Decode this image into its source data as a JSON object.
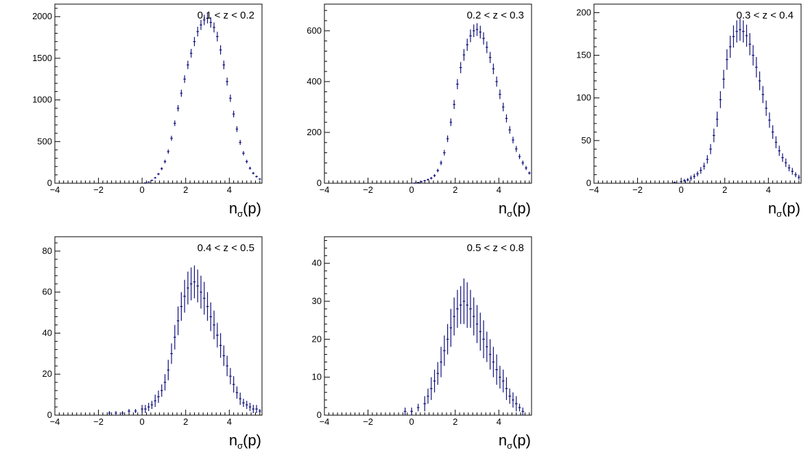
{
  "chart_data": [
    {
      "type": "scatter",
      "title": "0.1 < z < 0.2",
      "xlabel": "nσ(p)",
      "xlim": [
        -4,
        5.5
      ],
      "xticks": [
        -4,
        -2,
        0,
        2,
        4
      ],
      "ylim": [
        0,
        2150
      ],
      "yticks": [
        0,
        500,
        1000,
        1500,
        2000
      ],
      "series": [
        {
          "x": [
            0.15,
            0.3,
            0.45,
            0.6,
            0.75,
            0.9,
            1.05,
            1.2,
            1.35,
            1.5,
            1.65,
            1.8,
            1.95,
            2.1,
            2.25,
            2.4,
            2.55,
            2.7,
            2.85,
            3.0,
            3.15,
            3.3,
            3.45,
            3.6,
            3.75,
            3.9,
            4.05,
            4.2,
            4.35,
            4.5,
            4.65,
            4.8,
            4.95,
            5.1,
            5.25,
            5.4
          ],
          "y": [
            5,
            15,
            35,
            65,
            110,
            175,
            260,
            380,
            540,
            720,
            900,
            1080,
            1250,
            1420,
            1560,
            1700,
            1820,
            1900,
            1960,
            1980,
            1930,
            1870,
            1760,
            1600,
            1420,
            1220,
            1020,
            830,
            650,
            490,
            360,
            260,
            180,
            120,
            80,
            50
          ],
          "err": [
            3,
            5,
            8,
            10,
            14,
            18,
            22,
            26,
            30,
            34,
            38,
            42,
            46,
            50,
            52,
            55,
            58,
            60,
            62,
            62,
            62,
            60,
            58,
            56,
            52,
            48,
            44,
            40,
            35,
            30,
            26,
            22,
            18,
            14,
            12,
            9
          ]
        }
      ]
    },
    {
      "type": "scatter",
      "title": "0.2 < z < 0.3",
      "xlabel": "nσ(p)",
      "xlim": [
        -4,
        5.5
      ],
      "xticks": [
        -4,
        -2,
        0,
        2,
        4
      ],
      "ylim": [
        0,
        705
      ],
      "yticks": [
        0,
        200,
        400,
        600
      ],
      "series": [
        {
          "x": [
            0.15,
            0.3,
            0.45,
            0.6,
            0.75,
            0.9,
            1.05,
            1.2,
            1.35,
            1.5,
            1.65,
            1.8,
            1.95,
            2.1,
            2.25,
            2.4,
            2.55,
            2.7,
            2.85,
            3.0,
            3.15,
            3.3,
            3.45,
            3.6,
            3.75,
            3.9,
            4.05,
            4.2,
            4.35,
            4.5,
            4.65,
            4.8,
            4.95,
            5.1,
            5.25,
            5.4
          ],
          "y": [
            1,
            3,
            6,
            10,
            14,
            20,
            30,
            50,
            80,
            120,
            175,
            240,
            310,
            390,
            455,
            505,
            545,
            580,
            600,
            605,
            595,
            570,
            535,
            495,
            450,
            400,
            350,
            300,
            255,
            210,
            170,
            135,
            105,
            80,
            60,
            40
          ],
          "err": [
            1,
            2,
            3,
            3,
            4,
            5,
            6,
            7,
            9,
            11,
            13,
            15,
            18,
            20,
            22,
            23,
            24,
            25,
            25,
            25,
            25,
            24,
            23,
            22,
            21,
            20,
            19,
            17,
            16,
            15,
            13,
            12,
            10,
            9,
            8,
            6
          ]
        }
      ]
    },
    {
      "type": "scatter",
      "title": "0.3 < z < 0.4",
      "xlabel": "nσ(p)",
      "xlim": [
        -4,
        5.5
      ],
      "xticks": [
        -4,
        -2,
        0,
        2,
        4
      ],
      "ylim": [
        0,
        210
      ],
      "yticks": [
        0,
        50,
        100,
        150,
        200
      ],
      "series": [
        {
          "x": [
            -0.3,
            0.0,
            0.15,
            0.3,
            0.45,
            0.6,
            0.75,
            0.9,
            1.05,
            1.2,
            1.35,
            1.5,
            1.65,
            1.8,
            1.95,
            2.1,
            2.25,
            2.4,
            2.55,
            2.7,
            2.85,
            3.0,
            3.15,
            3.3,
            3.45,
            3.6,
            3.75,
            3.9,
            4.05,
            4.2,
            4.35,
            4.5,
            4.65,
            4.8,
            4.95,
            5.1,
            5.25,
            5.4
          ],
          "y": [
            1,
            2,
            3,
            4,
            6,
            8,
            11,
            15,
            20,
            28,
            40,
            56,
            75,
            98,
            122,
            145,
            160,
            172,
            178,
            180,
            178,
            173,
            163,
            150,
            136,
            120,
            104,
            88,
            74,
            60,
            48,
            38,
            30,
            24,
            18,
            14,
            10,
            7
          ],
          "err": [
            1,
            1,
            2,
            2,
            3,
            3,
            3,
            4,
            4,
            5,
            6,
            8,
            9,
            10,
            11,
            12,
            13,
            13,
            13,
            13,
            13,
            13,
            13,
            12,
            12,
            11,
            10,
            9,
            9,
            8,
            7,
            6,
            5,
            5,
            4,
            4,
            3,
            3
          ]
        }
      ]
    },
    {
      "type": "scatter",
      "title": "0.4 < z < 0.5",
      "xlabel": "nσ(p)",
      "xlim": [
        -4,
        5.5
      ],
      "xticks": [
        -4,
        -2,
        0,
        2,
        4
      ],
      "ylim": [
        0,
        87
      ],
      "yticks": [
        0,
        20,
        40,
        60,
        80
      ],
      "series": [
        {
          "x": [
            -1.5,
            -1.2,
            -0.9,
            -0.6,
            -0.3,
            0.0,
            0.15,
            0.3,
            0.45,
            0.6,
            0.75,
            0.9,
            1.05,
            1.2,
            1.35,
            1.5,
            1.65,
            1.8,
            1.95,
            2.1,
            2.25,
            2.4,
            2.55,
            2.7,
            2.85,
            3.0,
            3.15,
            3.3,
            3.45,
            3.6,
            3.75,
            3.9,
            4.05,
            4.2,
            4.35,
            4.5,
            4.65,
            4.8,
            4.95,
            5.1,
            5.25,
            5.4
          ],
          "y": [
            1,
            1,
            1,
            2,
            2,
            3,
            3,
            4,
            5,
            7,
            9,
            12,
            16,
            22,
            30,
            38,
            46,
            53,
            58,
            62,
            64,
            65,
            63,
            60,
            57,
            53,
            48,
            44,
            39,
            34,
            29,
            24,
            19,
            15,
            11,
            8,
            6,
            5,
            4,
            3,
            3,
            2
          ],
          "err": [
            1,
            1,
            1,
            1,
            1,
            2,
            2,
            2,
            2,
            3,
            3,
            3,
            4,
            5,
            5,
            6,
            7,
            7,
            8,
            8,
            8,
            8,
            8,
            8,
            8,
            7,
            7,
            7,
            6,
            6,
            5,
            5,
            4,
            4,
            3,
            3,
            2,
            2,
            2,
            2,
            2,
            1
          ]
        }
      ]
    },
    {
      "type": "scatter",
      "title": "0.5 < z < 0.8",
      "xlabel": "nσ(p)",
      "xlim": [
        -4,
        5.5
      ],
      "xticks": [
        -4,
        -2,
        0,
        2,
        4
      ],
      "ylim": [
        0,
        47
      ],
      "yticks": [
        0,
        10,
        20,
        30,
        40
      ],
      "series": [
        {
          "x": [
            -0.3,
            0.0,
            0.3,
            0.6,
            0.75,
            0.9,
            1.05,
            1.2,
            1.35,
            1.5,
            1.65,
            1.8,
            1.95,
            2.1,
            2.25,
            2.4,
            2.55,
            2.7,
            2.85,
            3.0,
            3.15,
            3.3,
            3.45,
            3.6,
            3.75,
            3.9,
            4.05,
            4.2,
            4.35,
            4.5,
            4.65,
            4.8,
            4.95,
            5.1
          ],
          "y": [
            1,
            1,
            2,
            3,
            5,
            7,
            9,
            11,
            14,
            17,
            20,
            23,
            26,
            28,
            29,
            30,
            29,
            28,
            26,
            24,
            22,
            20,
            18,
            16,
            14,
            12,
            10,
            9,
            7,
            5,
            4,
            3,
            2,
            1
          ],
          "err": [
            1,
            1,
            1,
            2,
            2,
            3,
            3,
            3,
            4,
            4,
            4,
            5,
            5,
            5,
            5,
            6,
            6,
            5,
            5,
            5,
            5,
            5,
            4,
            4,
            4,
            4,
            3,
            3,
            3,
            2,
            2,
            2,
            1,
            1
          ]
        }
      ]
    }
  ],
  "colors": {
    "marker": "#10107a",
    "axis": "#000000"
  }
}
